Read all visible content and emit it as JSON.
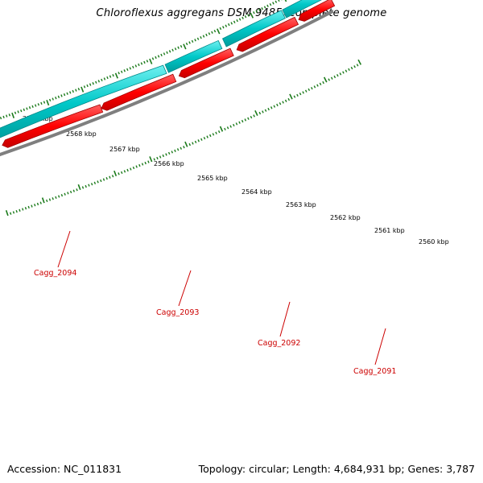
{
  "title": "Chloroflexus aggregans DSM 9485, complete genome",
  "scale_labels": [
    "2569 kbp",
    "2568 kbp",
    "2567 kbp",
    "2566 kbp",
    "2565 kbp",
    "2564 kbp",
    "2563 kbp",
    "2562 kbp",
    "2561 kbp",
    "2560 kbp"
  ],
  "genes": [
    {
      "forward": "",
      "reverse": "",
      "label": "Cagg_2094"
    },
    {
      "forward": "",
      "reverse": "",
      "label": "Cagg_2093"
    },
    {
      "forward": "",
      "reverse": "",
      "label": "Cagg_2092"
    },
    {
      "forward": "",
      "reverse": "",
      "label": "Cagg_2091"
    }
  ],
  "colors": {
    "backbone": "#7f7f7f",
    "forward_cds": "#ff0000",
    "reverse_cds": "#00c8c8",
    "ticks": "#1a7a1a",
    "gene_label": "#cc0000"
  },
  "footer": {
    "accession": "Accession: NC_011831",
    "summary": "Topology: circular; Length: 4,684,931 bp; Genes: 3,787"
  }
}
